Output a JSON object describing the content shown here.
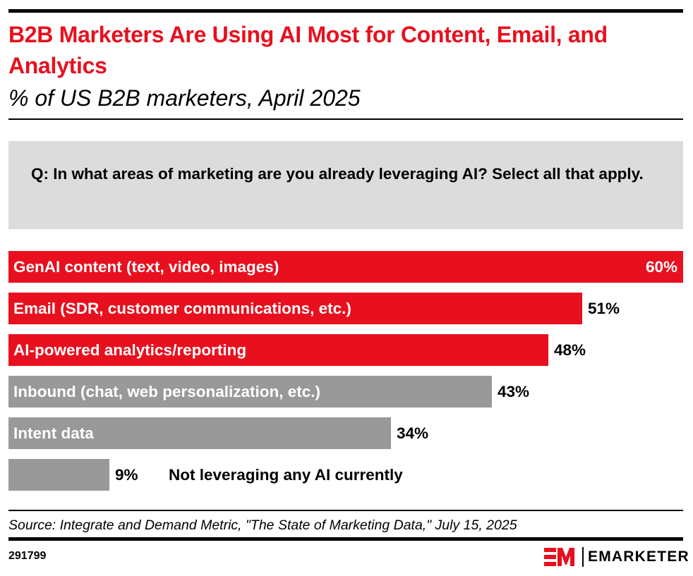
{
  "header": {
    "title": "B2B Marketers Are Using AI Most for Content, Email, and Analytics",
    "subtitle": "% of US B2B marketers, April 2025"
  },
  "question": "Q: In what areas of marketing are you already leveraging AI? Select all that apply.",
  "chart_data": {
    "type": "bar",
    "orientation": "horizontal",
    "title": "B2B Marketers Are Using AI Most for Content, Email, and Analytics",
    "subtitle": "% of US B2B marketers, April 2025",
    "xlabel": "",
    "ylabel": "",
    "xlim": [
      0,
      60
    ],
    "unit": "%",
    "categories": [
      "GenAI content (text, video, images)",
      "Email (SDR, customer communications, etc.)",
      "AI-powered analytics/reporting",
      "Inbound (chat, web personalization, etc.)",
      "Intent data",
      "Not leveraging any AI currently"
    ],
    "values": [
      60,
      51,
      48,
      43,
      34,
      9
    ],
    "value_labels": [
      "60%",
      "51%",
      "48%",
      "43%",
      "34%",
      "9%"
    ],
    "bar_colors": [
      "#e8101e",
      "#e8101e",
      "#e8101e",
      "#999999",
      "#999999",
      "#999999"
    ],
    "grid": false,
    "legend": "none"
  },
  "footer": {
    "source": "Source: Integrate and Demand Metric, \"The State of Marketing Data,\" July 15, 2025",
    "chart_id": "291799",
    "brand": "EMARKETER",
    "brand_mark": "EM"
  },
  "colors": {
    "accent": "#e8101e",
    "gray_bar": "#999999",
    "question_bg": "#dcdcdc"
  }
}
